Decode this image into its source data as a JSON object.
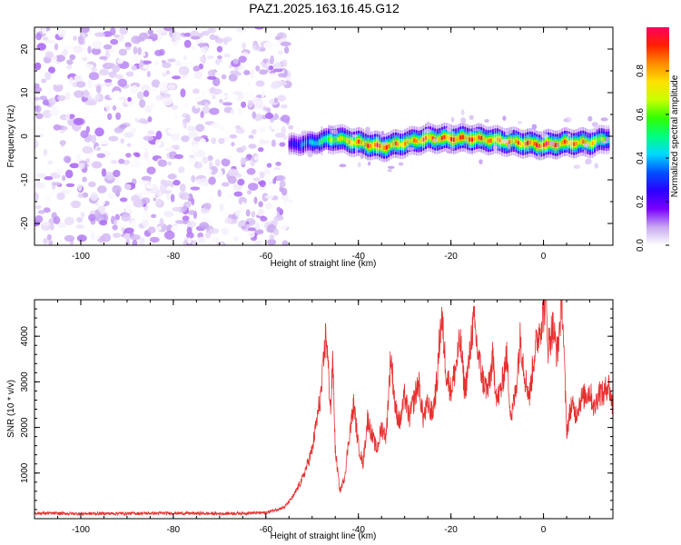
{
  "title": "PAZ1.2025.163.16.45.G12",
  "chart_data": [
    {
      "type": "heatmap",
      "xlabel": "Height of straight line (km)",
      "ylabel": "Frequency (Hz)",
      "xlim": [
        -110,
        15
      ],
      "ylim": [
        -25,
        25
      ],
      "xticks": [
        -100,
        -80,
        -60,
        -40,
        -20,
        0
      ],
      "yticks": [
        -20,
        -10,
        0,
        10,
        20
      ],
      "colorbar": {
        "label": "Normalized spectral amplitude",
        "range": [
          0,
          1
        ],
        "ticks": [
          0.0,
          0.2,
          0.4,
          0.6,
          0.8
        ],
        "colors": [
          "#ffffff",
          "#c8a8f0",
          "#7a00ff",
          "#2a00ff",
          "#0050ff",
          "#00d8ff",
          "#00ff80",
          "#30ff00",
          "#c8ff00",
          "#ffe000",
          "#ff8c00",
          "#ff2000",
          "#ff0060"
        ]
      },
      "noise_region": {
        "x": [
          -110,
          -55
        ],
        "amplitude": [
          0.0,
          0.12
        ]
      },
      "signal_ridge": {
        "x": [
          -55,
          -50,
          -45,
          -40,
          -35,
          -30,
          -25,
          -20,
          -15,
          -10,
          -5,
          0,
          5,
          10,
          14
        ],
        "frequency": [
          -2.0,
          -1.5,
          -0.5,
          -1.5,
          -2.5,
          -1.5,
          -0.5,
          -0.5,
          -0.5,
          -1.0,
          -1.5,
          -2.0,
          -1.5,
          -1.5,
          -0.5
        ],
        "peak_amplitude": [
          0.25,
          0.45,
          0.7,
          0.9,
          0.95,
          0.85,
          0.9,
          0.95,
          0.95,
          0.85,
          0.9,
          1.0,
          0.9,
          0.85,
          0.6
        ]
      }
    },
    {
      "type": "line",
      "xlabel": "Height of straight line (km)",
      "ylabel": "SNR (10 * v/v)",
      "xlim": [
        -110,
        15
      ],
      "ylim": [
        0,
        4800
      ],
      "xticks": [
        -100,
        -80,
        -60,
        -40,
        -20,
        0
      ],
      "yticks": [
        1000,
        2000,
        3000,
        4000
      ],
      "color": "#e83030",
      "series": [
        {
          "x": [
            -110,
            -100,
            -90,
            -80,
            -70,
            -60,
            -56,
            -54,
            -52,
            -50,
            -48,
            -47,
            -46,
            -45.5,
            -45,
            -44,
            -43,
            -42,
            -41,
            -40,
            -39,
            -38,
            -37,
            -36,
            -35,
            -34,
            -33,
            -32,
            -31,
            -30,
            -29,
            -28,
            -27,
            -26,
            -25,
            -24,
            -23,
            -22.5,
            -22,
            -21,
            -20,
            -19,
            -18,
            -17,
            -16,
            -15.5,
            -15,
            -14,
            -13,
            -12,
            -11,
            -10,
            -9,
            -8,
            -7,
            -6,
            -5,
            -4,
            -3,
            -2,
            -1,
            0,
            0.5,
            1,
            2,
            3,
            4,
            4.5,
            5,
            6,
            7,
            8,
            9,
            10,
            11,
            12,
            13,
            14,
            15
          ],
          "y": [
            120,
            110,
            115,
            120,
            110,
            130,
            250,
            500,
            900,
            1500,
            2800,
            4100,
            2400,
            3500,
            1500,
            600,
            900,
            1800,
            2500,
            1600,
            1200,
            2200,
            1800,
            1500,
            2000,
            1800,
            3600,
            2400,
            2100,
            2700,
            2200,
            2600,
            3000,
            2200,
            2500,
            2300,
            3000,
            3900,
            4400,
            3200,
            2800,
            3300,
            3900,
            2800,
            3500,
            4100,
            4300,
            3500,
            3000,
            2800,
            3500,
            2600,
            2900,
            3600,
            2200,
            2800,
            4000,
            3100,
            2700,
            3600,
            4100,
            4500,
            4900,
            3800,
            4200,
            3600,
            4900,
            3400,
            1900,
            2500,
            2300,
            2600,
            2700,
            2800,
            2400,
            2800,
            2700,
            3000,
            2400
          ]
        }
      ]
    }
  ]
}
